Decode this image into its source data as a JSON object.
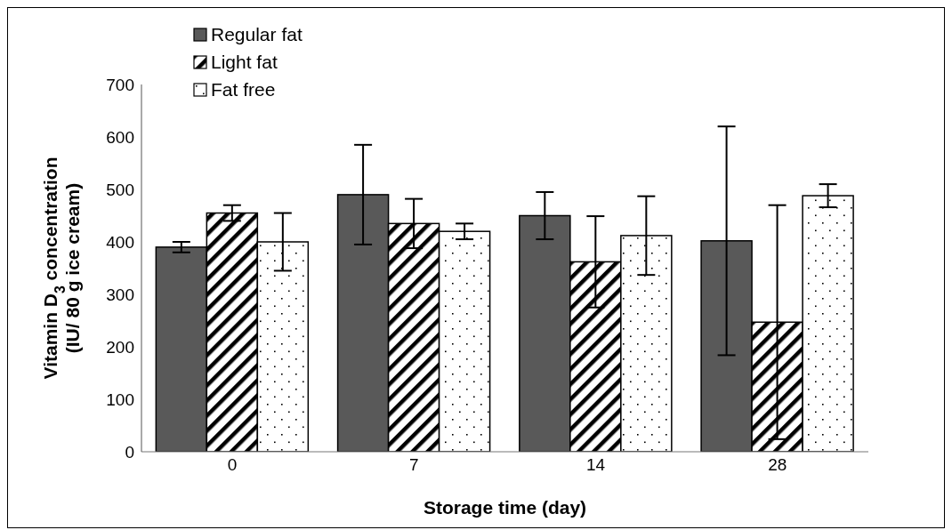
{
  "chart_data": {
    "type": "bar",
    "xlabel": "Storage time (day)",
    "ylabel": "Vitamin D$_{3}$ concentration\n(IU/ 80 g ice cream)",
    "categories": [
      "0",
      "7",
      "14",
      "28"
    ],
    "series": [
      {
        "name": "Regular fat",
        "color": "#595959",
        "values": [
          390,
          490,
          450,
          402
        ],
        "errors": [
          10,
          95,
          45,
          218
        ]
      },
      {
        "name": "Light fat",
        "color": "#000000",
        "values": [
          455,
          435,
          362,
          247
        ],
        "errors": [
          15,
          47,
          87,
          223
        ]
      },
      {
        "name": "Fat free",
        "color": "#ffffff",
        "values": [
          400,
          420,
          412,
          488
        ],
        "errors": [
          55,
          15,
          75,
          22
        ]
      }
    ],
    "ylim": [
      0,
      700
    ],
    "yticks": [
      0,
      100,
      200,
      300,
      400,
      500,
      600,
      700
    ],
    "grid": false,
    "legend": "top left"
  }
}
